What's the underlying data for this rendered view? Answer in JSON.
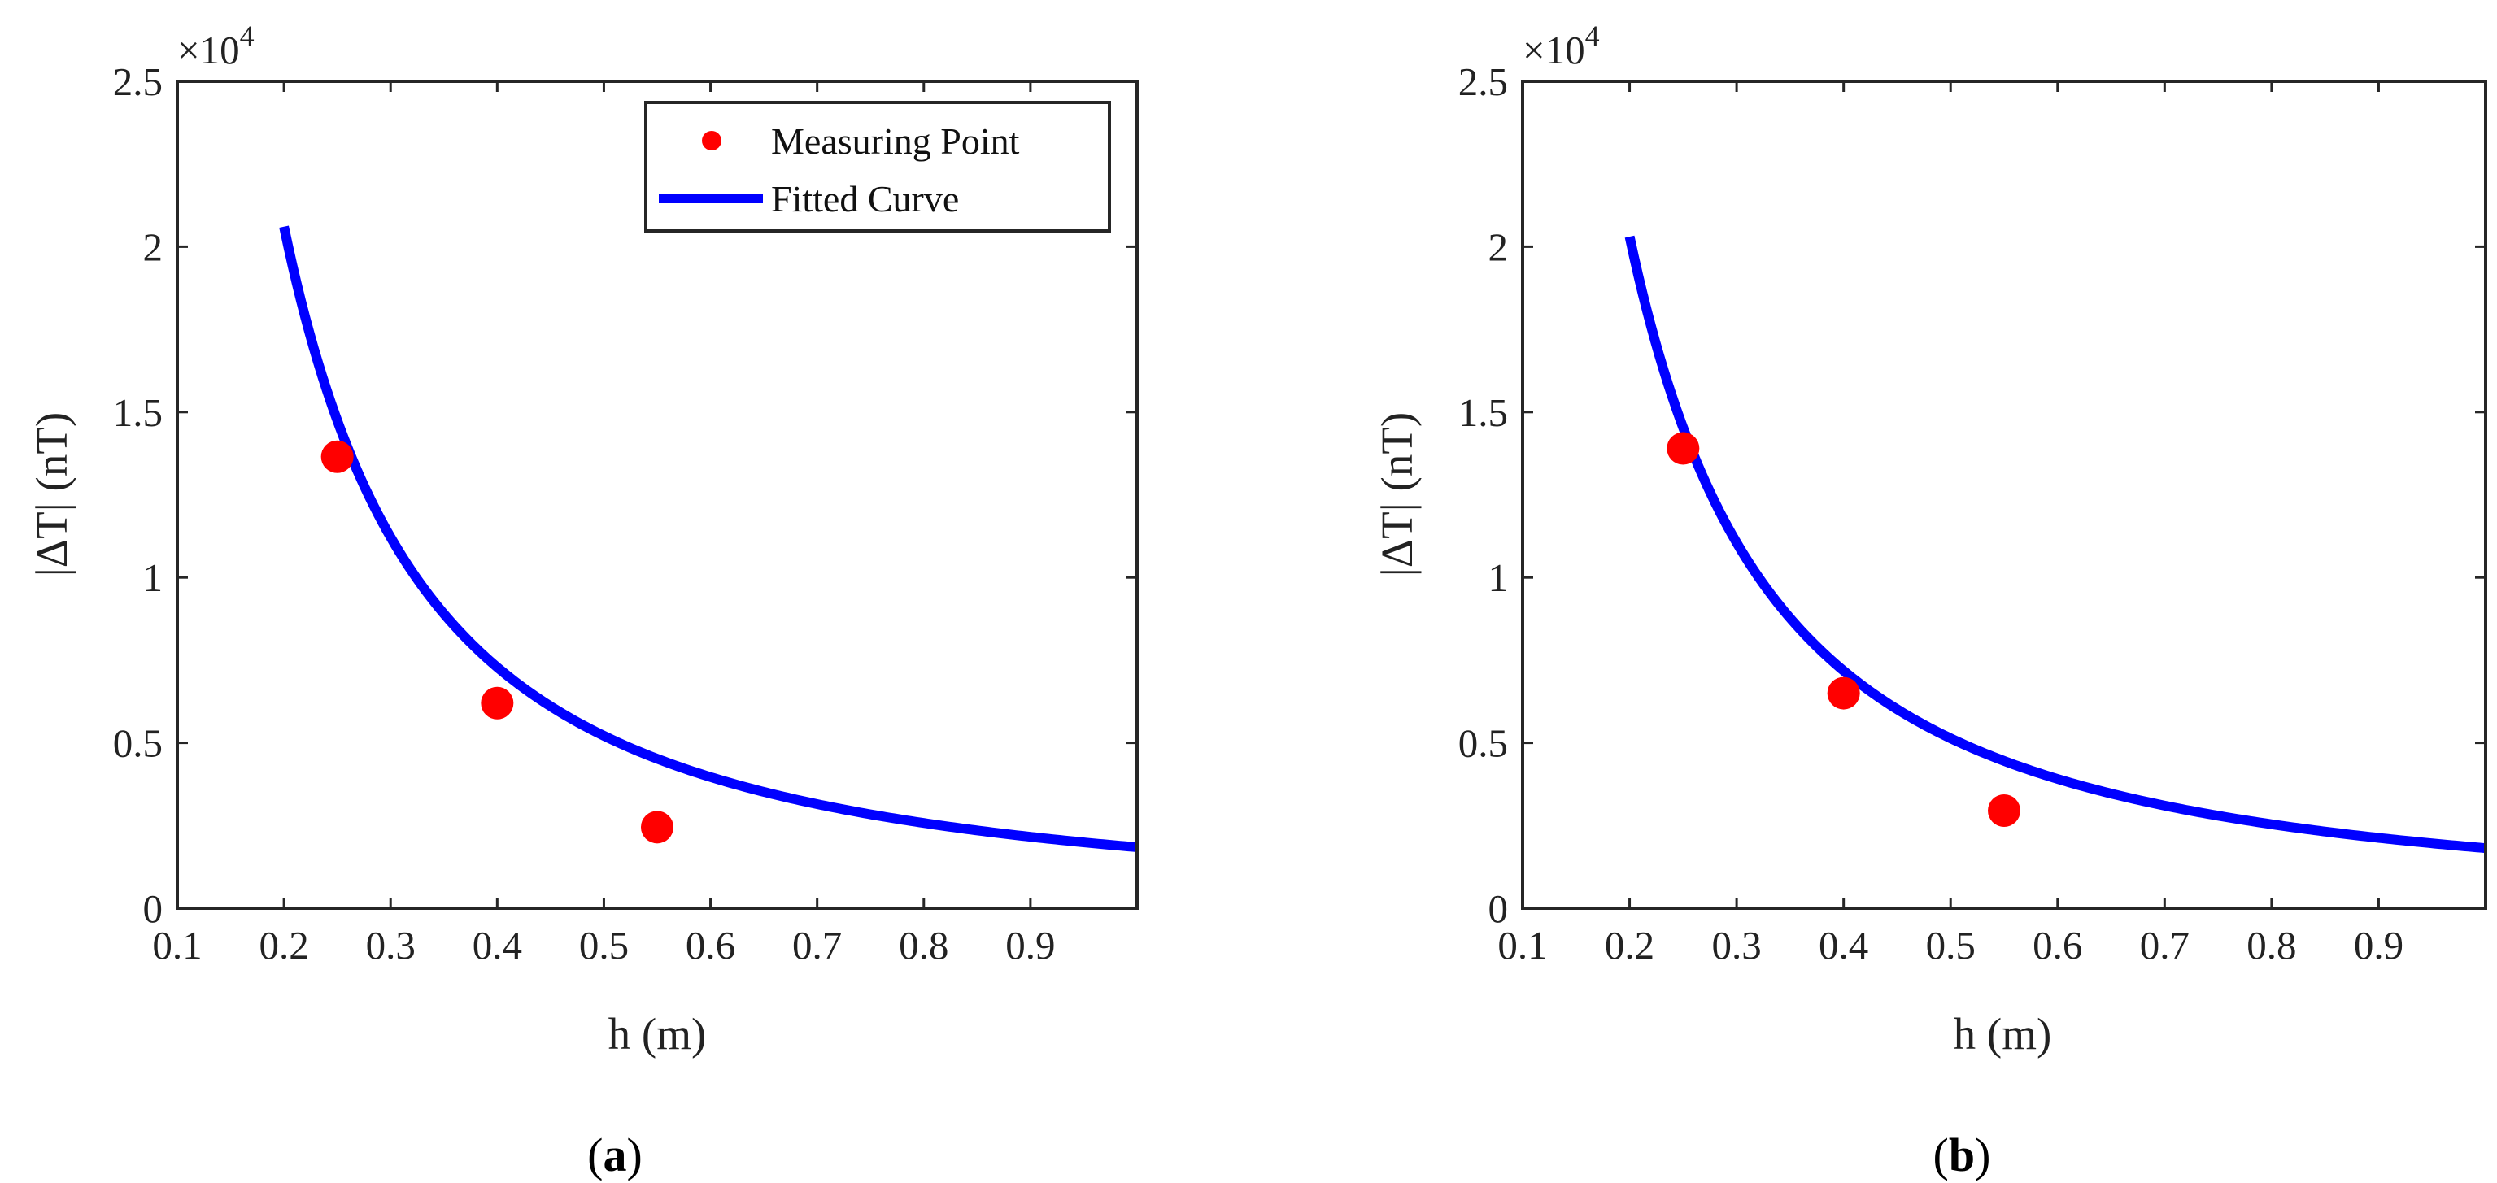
{
  "chart_data": [
    {
      "type": "scatter",
      "panel_label": "a",
      "xlabel": "h (m)",
      "ylabel": "|ΔT| (nT)",
      "y_multiplier": "×10",
      "y_multiplier_exp": "4",
      "xlim": [
        0.1,
        1.0
      ],
      "ylim": [
        0,
        2.5
      ],
      "xticks": [
        "0.1",
        "0.2",
        "0.3",
        "0.4",
        "0.5",
        "0.6",
        "0.7",
        "0.8",
        "0.9"
      ],
      "yticks": [
        "0",
        "0.5",
        "1",
        "1.5",
        "2",
        "2.5"
      ],
      "legend": {
        "placement": "top-right",
        "entries": [
          "Measuring Point",
          "Fitted Curve"
        ]
      },
      "series": [
        {
          "name": "Measuring Point",
          "kind": "scatter",
          "color": "#ff0000",
          "x": [
            0.25,
            0.4,
            0.55
          ],
          "y": [
            1.365,
            0.62,
            0.245
          ]
        },
        {
          "name": "Fitted Curve",
          "kind": "line",
          "color": "#0000ff",
          "equation": "y = a / h^1.5",
          "a": 0.1843,
          "x_range": [
            0.2,
            1.0
          ]
        }
      ]
    },
    {
      "type": "scatter",
      "panel_label": "b",
      "xlabel": "h (m)",
      "ylabel": "|ΔT| (nT)",
      "y_multiplier": "×10",
      "y_multiplier_exp": "4",
      "xlim": [
        0.1,
        1.0
      ],
      "ylim": [
        0,
        2.5
      ],
      "xticks": [
        "0.1",
        "0.2",
        "0.3",
        "0.4",
        "0.5",
        "0.6",
        "0.7",
        "0.8",
        "0.9"
      ],
      "yticks": [
        "0",
        "0.5",
        "1",
        "1.5",
        "2",
        "2.5"
      ],
      "series": [
        {
          "name": "Measuring Point",
          "kind": "scatter",
          "color": "#ff0000",
          "x": [
            0.25,
            0.4,
            0.55
          ],
          "y": [
            1.39,
            0.65,
            0.295
          ]
        },
        {
          "name": "Fitted Curve",
          "kind": "line",
          "color": "#0000ff",
          "equation": "y = a / h^1.5",
          "a": 0.1816,
          "x_range": [
            0.2,
            1.0
          ]
        }
      ]
    }
  ]
}
